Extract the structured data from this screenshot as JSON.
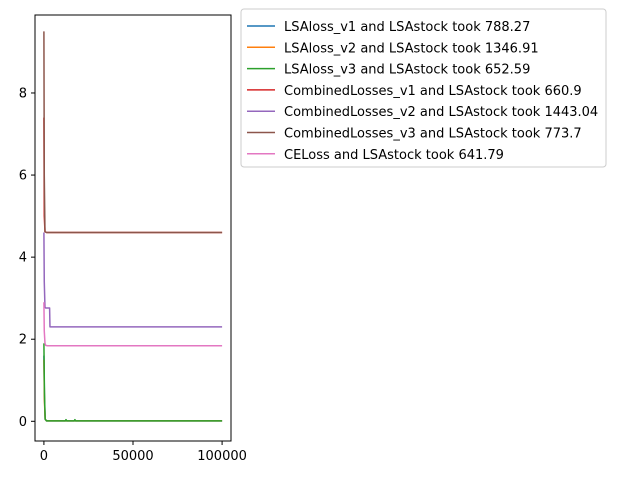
{
  "chart_data": {
    "type": "line",
    "title": "",
    "xlabel": "",
    "ylabel": "",
    "xlim": [
      -5000,
      105000
    ],
    "ylim": [
      -0.48,
      9.9
    ],
    "xticks": [
      0,
      50000,
      100000
    ],
    "yticks": [
      0,
      2,
      4,
      6,
      8
    ],
    "grid": false,
    "legend_position": "outside-top-right",
    "series": [
      {
        "name": "LSAloss_v1 and LSAstock took 788.27",
        "color": "#1f77b4",
        "x": [
          0,
          300,
          700,
          1500,
          5000,
          20000,
          50000,
          100000
        ],
        "y": [
          1.6,
          0.6,
          0.05,
          0.01,
          0.01,
          0.01,
          0.01,
          0.01
        ]
      },
      {
        "name": "LSAloss_v2 and LSAstock took 1346.91",
        "color": "#ff7f0e",
        "x": [
          0,
          300,
          700,
          1500,
          5000,
          20000,
          50000,
          100000
        ],
        "y": [
          1.5,
          0.5,
          0.05,
          0.01,
          0.01,
          0.01,
          0.01,
          0.01
        ]
      },
      {
        "name": "LSAloss_v3 and LSAstock took 652.59",
        "color": "#2ca02c",
        "x": [
          0,
          300,
          700,
          1500,
          12000,
          12400,
          12800,
          17000,
          17400,
          17800,
          50000,
          100000
        ],
        "y": [
          1.9,
          0.7,
          0.05,
          0.01,
          0.01,
          0.04,
          0.01,
          0.01,
          0.04,
          0.01,
          0.01,
          0.01
        ]
      },
      {
        "name": "CombinedLosses_v1 and LSAstock took 660.9",
        "color": "#d62728",
        "x": [
          0,
          200,
          600,
          1500,
          50000,
          100000
        ],
        "y": [
          7.4,
          5.0,
          4.62,
          4.6,
          4.6,
          4.6
        ]
      },
      {
        "name": "CombinedLosses_v2 and LSAstock took 1443.04",
        "color": "#9467bd",
        "x": [
          0,
          200,
          600,
          1000,
          3200,
          3400,
          4000,
          50000,
          100000
        ],
        "y": [
          4.6,
          3.4,
          2.78,
          2.76,
          2.76,
          2.3,
          2.3,
          2.3,
          2.3
        ]
      },
      {
        "name": "CombinedLosses_v3 and LSAstock took 773.7",
        "color": "#8c564b",
        "x": [
          0,
          200,
          600,
          1500,
          50000,
          100000
        ],
        "y": [
          9.5,
          6.0,
          4.62,
          4.6,
          4.6,
          4.6
        ]
      },
      {
        "name": "CELoss and LSAstock took 641.79",
        "color": "#e377c2",
        "x": [
          0,
          200,
          600,
          1000,
          2000,
          50000,
          100000
        ],
        "y": [
          2.9,
          2.2,
          1.9,
          1.85,
          1.84,
          1.84,
          1.84
        ]
      }
    ]
  }
}
